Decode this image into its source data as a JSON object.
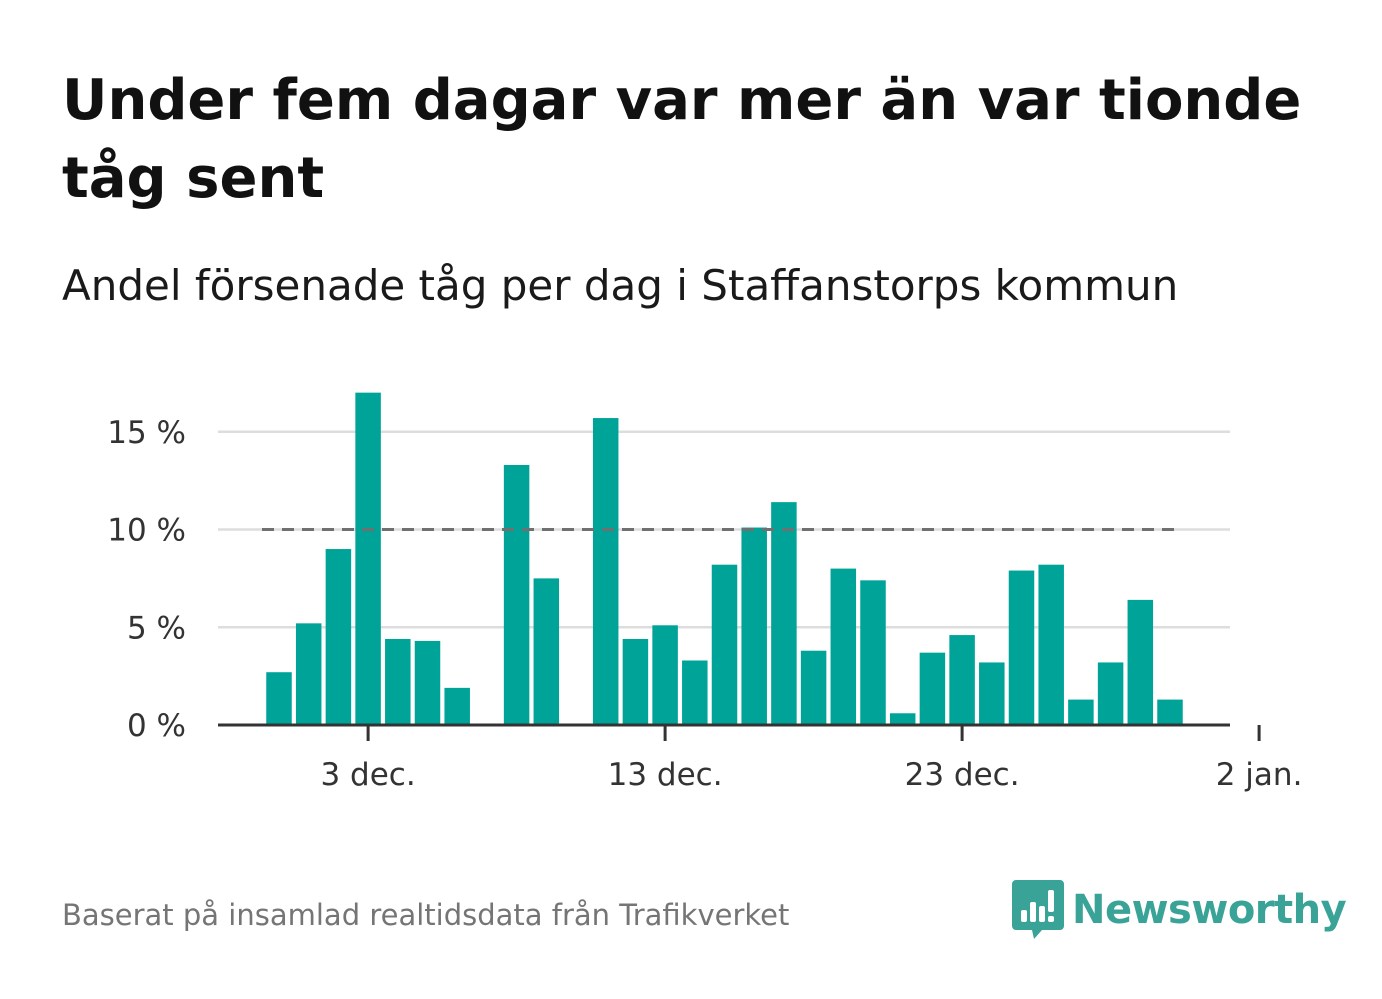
{
  "title": "Under fem dagar var mer än var tionde tåg sent",
  "subtitle": "Andel försenade tåg per dag i Staffanstorps kommun",
  "source": "Baserat på insamlad realtidsdata från Trafikverket",
  "brand": {
    "name": "Newsworthy",
    "color": "#3aa397"
  },
  "colors": {
    "bar": "#00a398",
    "reference_line": "#707070",
    "grid": "#dddddd",
    "axis": "#333333"
  },
  "chart_data": {
    "type": "bar",
    "x_start": "2023-11-30",
    "x_ticks": [
      "3 dec.",
      "13 dec.",
      "23 dec.",
      "2 jan."
    ],
    "y_ticks": [
      "0 %",
      "5 %",
      "10 %",
      "15 %"
    ],
    "ylim": [
      0,
      17.5
    ],
    "reference_line": 10,
    "values": [
      2.7,
      5.2,
      9.0,
      17.0,
      4.4,
      4.3,
      1.9,
      null,
      13.3,
      7.5,
      null,
      15.7,
      4.4,
      5.1,
      3.3,
      8.2,
      10.1,
      11.4,
      3.8,
      8.0,
      7.4,
      0.6,
      3.7,
      4.6,
      3.2,
      7.9,
      8.2,
      1.3,
      3.2,
      6.4,
      1.3
    ]
  },
  "y_tick_values": [
    0,
    5,
    10,
    15
  ],
  "x_tick_offsets": [
    3,
    13,
    23,
    33
  ]
}
